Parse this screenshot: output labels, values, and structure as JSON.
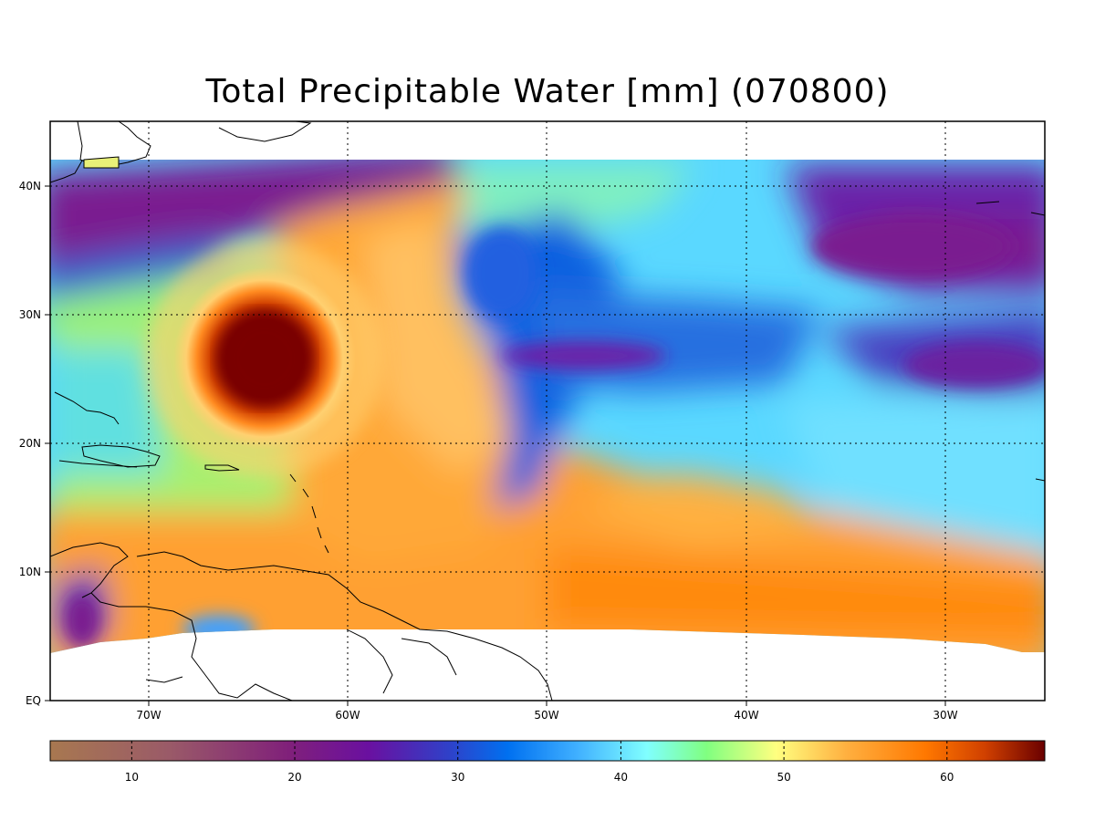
{
  "title": "Total Precipitable Water [mm]  (070800)",
  "map": {
    "lat_labels": [
      "EQ",
      "10N",
      "20N",
      "30N",
      "40N"
    ],
    "lon_labels": [
      "70W",
      "60W",
      "50W",
      "40W",
      "30W"
    ],
    "lon_range": [
      -75,
      -25
    ],
    "lat_range": [
      0,
      45
    ],
    "grid": true,
    "features": [
      {
        "name": "hurricane-eye",
        "lon": -64.2,
        "lat": 26.5,
        "value_mm": 64
      }
    ]
  },
  "colorbar": {
    "min": 5,
    "max": 66,
    "tick_labels": [
      "10",
      "20",
      "30",
      "40",
      "50",
      "60"
    ],
    "tick_values": [
      10,
      20,
      30,
      40,
      50,
      60
    ],
    "colors": [
      "#a87850",
      "#9a5a68",
      "#7a1a80",
      "#3a40c0",
      "#0070f0",
      "#40c0ff",
      "#80ffff",
      "#80ff80",
      "#ffff80",
      "#ffb040",
      "#ff7800",
      "#d04000",
      "#6a0000"
    ]
  }
}
